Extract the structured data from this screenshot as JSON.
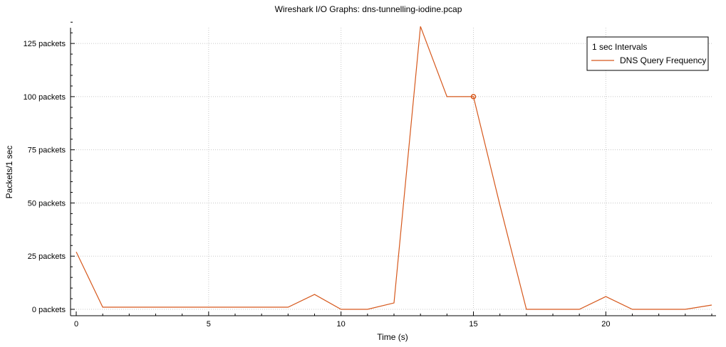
{
  "chart_data": {
    "type": "line",
    "title": "Wireshark I/O Graphs: dns-tunnelling-iodine.pcap",
    "xlabel": "Time (s)",
    "ylabel": "Packets/1 sec",
    "xlim": [
      0,
      24
    ],
    "ylim": [
      0,
      135
    ],
    "grid": true,
    "legend_position": "top-right",
    "legend_title": "1 sec Intervals",
    "x_ticks": [
      0,
      5,
      10,
      15,
      20
    ],
    "x_tick_labels": [
      "0",
      "5",
      "10",
      "15",
      "20"
    ],
    "y_ticks": [
      0,
      25,
      50,
      75,
      100,
      125
    ],
    "y_tick_labels": [
      "0 packets",
      "25 packets",
      "50 packets",
      "75 packets",
      "100 packets",
      "125 packets"
    ],
    "series": [
      {
        "name": "DNS Query Frequency",
        "color": "#d6581c",
        "x": [
          0,
          1,
          2,
          3,
          4,
          5,
          6,
          7,
          8,
          9,
          10,
          11,
          12,
          13,
          14,
          15,
          16,
          17,
          18,
          19,
          20,
          21,
          22,
          23,
          24
        ],
        "values": [
          27,
          1,
          1,
          1,
          1,
          1,
          1,
          1,
          1,
          7,
          0,
          0,
          3,
          133,
          100,
          100,
          49,
          0,
          0,
          0,
          6,
          0,
          0,
          0,
          2
        ],
        "marker": {
          "x": 15,
          "y": 100
        }
      }
    ]
  }
}
